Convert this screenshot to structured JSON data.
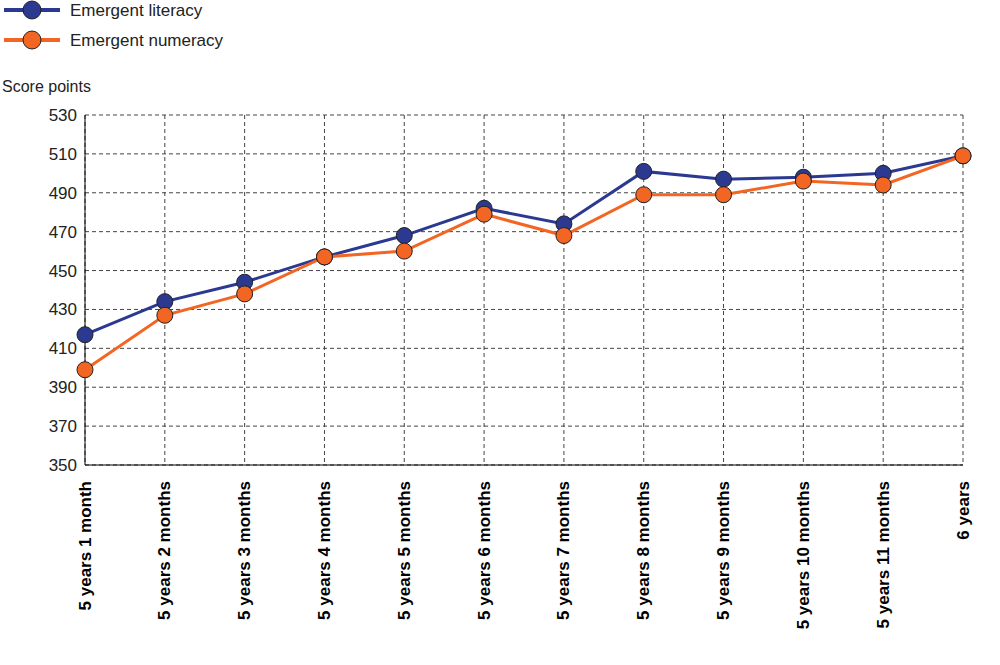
{
  "chart_data": {
    "type": "line",
    "y_label": "Score points",
    "categories": [
      "5 years 1 month",
      "5 years 2 months",
      "5 years 3 months",
      "5 years 4 months",
      "5 years 5 months",
      "5 years 6 months",
      "5 years 7 months",
      "5 years 8 months",
      "5 years 9 months",
      "5 years 10 months",
      "5 years 11 months",
      "6 years"
    ],
    "series": [
      {
        "name": "Emergent literacy",
        "color": "#2b3990",
        "values": [
          417,
          434,
          444,
          457,
          468,
          482,
          474,
          501,
          497,
          498,
          500,
          509
        ]
      },
      {
        "name": "Emergent numeracy",
        "color": "#f26522",
        "values": [
          399,
          427,
          438,
          457,
          460,
          479,
          468,
          489,
          489,
          496,
          494,
          509
        ]
      }
    ],
    "ylim": [
      350,
      530
    ],
    "yticks": [
      350,
      370,
      390,
      410,
      430,
      450,
      470,
      490,
      510,
      530
    ],
    "grid": true,
    "legend": "top-left",
    "marker": "circle"
  }
}
